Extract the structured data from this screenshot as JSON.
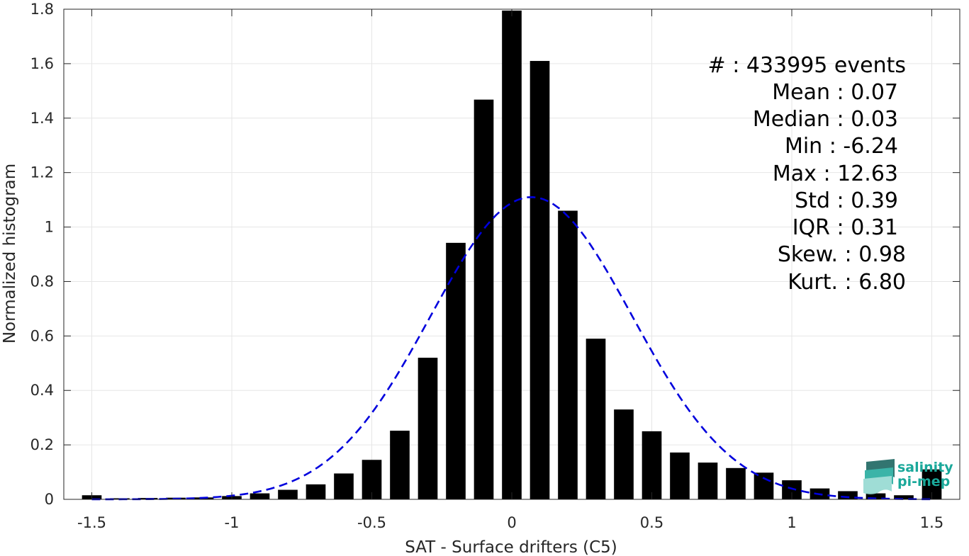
{
  "chart_data": {
    "type": "bar",
    "xlabel": "SAT - Surface drifters (C5)",
    "ylabel": "Normalized histogram",
    "xlim": [
      -1.6,
      1.6
    ],
    "ylim": [
      0,
      1.8
    ],
    "xticks": [
      -1.5,
      -1,
      -0.5,
      0,
      0.5,
      1,
      1.5
    ],
    "xtick_labels": [
      "-1.5",
      "-1",
      "-0.5",
      "0",
      "0.5",
      "1",
      "1.5"
    ],
    "yticks": [
      0,
      0.2,
      0.4,
      0.6,
      0.8,
      1,
      1.2,
      1.4,
      1.6,
      1.8
    ],
    "ytick_labels": [
      "0",
      "0.2",
      "0.4",
      "0.6",
      "0.8",
      "1",
      "1.2",
      "1.4",
      "1.6",
      "1.8"
    ],
    "grid": true,
    "bar_width": 0.07,
    "bar_color": "#000000",
    "bars": {
      "x": [
        -1.5,
        -1.4,
        -1.3,
        -1.2,
        -1.1,
        -1.0,
        -0.9,
        -0.8,
        -0.7,
        -0.6,
        -0.5,
        -0.4,
        -0.3,
        -0.2,
        -0.1,
        0.0,
        0.1,
        0.2,
        0.3,
        0.4,
        0.5,
        0.6,
        0.7,
        0.8,
        0.9,
        1.0,
        1.1,
        1.2,
        1.3,
        1.4,
        1.5
      ],
      "values": [
        0.015,
        0.004,
        0.005,
        0.006,
        0.007,
        0.012,
        0.022,
        0.035,
        0.055,
        0.095,
        0.145,
        0.252,
        0.52,
        0.942,
        1.468,
        1.795,
        1.61,
        1.06,
        0.59,
        0.33,
        0.25,
        0.172,
        0.135,
        0.115,
        0.098,
        0.07,
        0.04,
        0.03,
        0.022,
        0.015,
        0.11
      ]
    },
    "fit_curve": {
      "name": "",
      "style": "dashed",
      "color": "#0000dd",
      "mean": 0.07,
      "std": 0.36,
      "peak": 1.11,
      "x_range": [
        -1.5,
        1.5
      ]
    }
  },
  "stats": {
    "events": "#  : 433995 events",
    "mean": "Mean : 0.07",
    "median": "Median : 0.03",
    "min": "Min : -6.24",
    "max": "Max : 12.63",
    "std": "Std : 0.39",
    "iqr": "IQR : 0.31",
    "skew": "Skew. : 0.98",
    "kurt": "Kurt. : 6.80"
  },
  "logo": {
    "line1": "salinity",
    "line2": "pi-mep",
    "color": "#1aa89a"
  }
}
